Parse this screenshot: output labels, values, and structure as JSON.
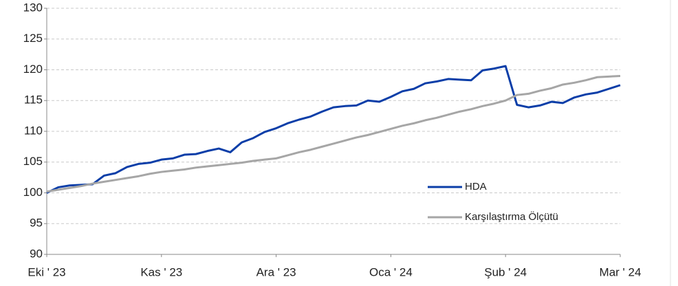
{
  "chart_data": {
    "type": "line",
    "x": [
      0,
      2,
      4,
      6,
      8,
      10,
      12,
      14,
      16,
      18,
      20,
      22,
      24,
      26,
      28,
      30,
      32,
      34,
      36,
      38,
      40,
      42,
      44,
      46,
      48,
      50,
      52,
      54,
      56,
      58,
      60,
      62,
      64,
      66,
      68,
      70,
      72,
      74,
      76,
      78,
      80,
      82,
      84,
      86,
      88,
      90,
      92,
      94,
      96,
      98,
      100
    ],
    "series": [
      {
        "name": "HDA",
        "color": "#0b3ea8",
        "values": [
          100,
          100.9,
          101.2,
          101.3,
          101.4,
          102.8,
          103.2,
          104.2,
          104.7,
          104.9,
          105.4,
          105.6,
          106.2,
          106.3,
          106.8,
          107.2,
          106.6,
          108.2,
          108.9,
          109.9,
          110.5,
          111.3,
          111.9,
          112.4,
          113.2,
          113.9,
          114.1,
          114.2,
          115,
          114.8,
          115.6,
          116.5,
          116.9,
          117.8,
          118.1,
          118.5,
          118.4,
          118.3,
          119.9,
          120.2,
          120.6,
          114.3,
          113.9,
          114.2,
          114.8,
          114.6,
          115.5,
          116,
          116.3,
          116.9,
          117.5
        ]
      },
      {
        "name": "Karşılaştırma Ölçütü",
        "color": "#a6a6a6",
        "values": [
          100.2,
          100.5,
          100.8,
          101.1,
          101.5,
          101.8,
          102.1,
          102.4,
          102.7,
          103.1,
          103.4,
          103.6,
          103.8,
          104.1,
          104.3,
          104.5,
          104.7,
          104.9,
          105.2,
          105.4,
          105.6,
          106.1,
          106.6,
          107,
          107.5,
          108,
          108.5,
          109,
          109.4,
          109.9,
          110.4,
          110.9,
          111.3,
          111.8,
          112.2,
          112.7,
          113.2,
          113.6,
          114.1,
          114.5,
          115,
          115.9,
          116.1,
          116.6,
          117,
          117.6,
          117.9,
          118.3,
          118.8,
          118.9,
          119
        ]
      }
    ],
    "xlim": [
      0,
      100
    ],
    "xticks": [
      {
        "value": 0,
        "label": "Eki ' 23"
      },
      {
        "value": 20,
        "label": "Kas ' 23"
      },
      {
        "value": 40,
        "label": "Ara ' 23"
      },
      {
        "value": 60,
        "label": "Oca ' 24"
      },
      {
        "value": 80,
        "label": "Şub ' 24"
      },
      {
        "value": 100,
        "label": "Mar ' 24"
      }
    ],
    "ylim": [
      90,
      130
    ],
    "yticks": [
      90,
      95,
      100,
      105,
      110,
      115,
      120,
      125,
      130
    ],
    "grid": true,
    "legend": "right"
  }
}
